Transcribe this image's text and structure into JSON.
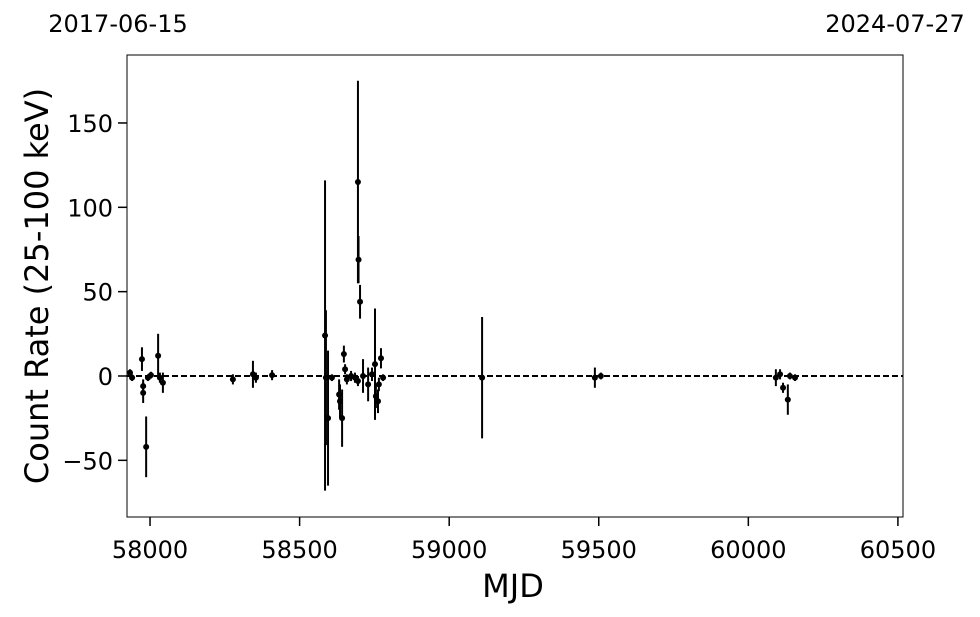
{
  "chart_data": {
    "type": "scatter",
    "top_labels": [
      "2017-06-15",
      "2024-07-27"
    ],
    "xlabel": "MJD",
    "ylabel": "Count Rate (25-100 keV)",
    "xlim": [
      57923,
      60517
    ],
    "ylim": [
      -83.6,
      190.3
    ],
    "xticks": [
      58000,
      58500,
      59000,
      59500,
      60000,
      60500
    ],
    "yticks": [
      {
        "value": -50,
        "label": "−50"
      },
      0,
      50,
      100,
      150
    ],
    "hline": 0,
    "color": "#000000",
    "x": [
      57933,
      57940,
      57973,
      57977,
      57977,
      57987,
      57993,
      58003,
      58027,
      58033,
      58043,
      58277,
      58344,
      58354,
      58408,
      58585,
      58588,
      58595,
      58608,
      58632,
      58635,
      58642,
      58648,
      58652,
      58658,
      58672,
      58685,
      58695,
      58697,
      58702,
      58695,
      58712,
      58729,
      58742,
      58752,
      58755,
      58762,
      58765,
      58772,
      58779,
      59110,
      59487,
      59507,
      60092,
      60106,
      60116,
      60132,
      60139,
      60156
    ],
    "values": [
      2,
      -1,
      10,
      -6,
      -10,
      -42,
      -1,
      0.5,
      12,
      -1,
      -4,
      -2,
      1,
      -1,
      0.5,
      24,
      -1,
      -25,
      -1,
      -11,
      -15,
      -25,
      13,
      4,
      -2,
      0,
      -1,
      115,
      69,
      44,
      -3,
      0,
      -5,
      1,
      7,
      -12,
      -15,
      -5,
      10.5,
      -1,
      -1,
      -1,
      0,
      -1,
      1,
      -7,
      -14,
      0,
      -1
    ],
    "yerr": [
      2,
      2,
      7,
      4,
      6,
      18,
      2,
      2,
      13,
      3,
      6,
      3,
      8,
      3,
      3,
      92,
      40,
      40,
      2,
      9,
      10,
      17,
      5,
      3,
      3,
      3,
      3,
      60,
      14,
      10,
      3,
      10,
      10,
      4,
      33,
      7,
      7,
      4,
      6,
      2,
      36,
      6,
      2,
      5,
      3,
      3,
      9,
      2,
      2
    ]
  }
}
